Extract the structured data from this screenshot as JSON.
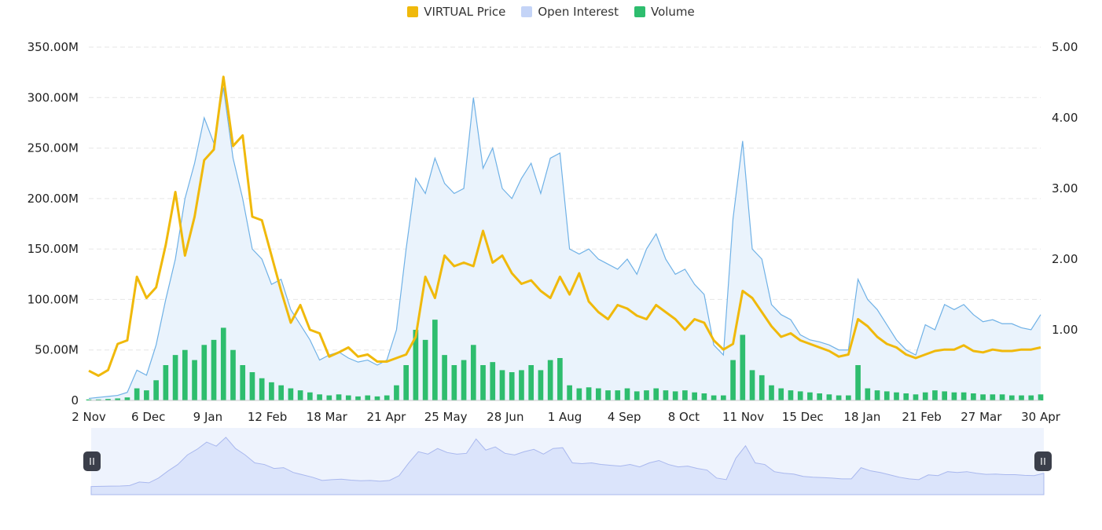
{
  "legend": {
    "price_label": "VIRTUAL Price",
    "oi_label": "Open Interest",
    "volume_label": "Volume"
  },
  "colors": {
    "price": "#f0b90b",
    "open_interest_line": "#6fb1e6",
    "open_interest_fill": "#eaf3fc",
    "open_interest_swatch": "#c4d4f7",
    "volume": "#2ebd6e",
    "grid": "#e6e6e6",
    "navigator_fill": "#dbe4fb",
    "navigator_bg": "#eef3fd",
    "navigator_handle": "#3b3f4a"
  },
  "chart_data": {
    "type": "line",
    "x_ticks": [
      "2 Nov",
      "6 Dec",
      "9 Jan",
      "12 Feb",
      "18 Mar",
      "21 Apr",
      "25 May",
      "28 Jun",
      "1 Aug",
      "4 Sep",
      "8 Oct",
      "11 Nov",
      "15 Dec",
      "18 Jan",
      "21 Feb",
      "27 Mar",
      "30 Apr"
    ],
    "y_left_ticks": [
      "0",
      "50.00M",
      "100.00M",
      "150.00M",
      "200.00M",
      "250.00M",
      "300.00M",
      "350.00M"
    ],
    "y_left_range": [
      0,
      350000000
    ],
    "y_right_ticks": [
      "1.00",
      "2.00",
      "3.00",
      "4.00",
      "5.00"
    ],
    "y_right_range": [
      0,
      5
    ],
    "grid": "horizontal dashed",
    "legend_position": "top-center",
    "series": [
      {
        "name": "VIRTUAL Price",
        "axis": "right",
        "style": "line",
        "values": [
          0.42,
          0.35,
          0.43,
          0.8,
          0.85,
          1.75,
          1.45,
          1.6,
          2.2,
          2.95,
          2.05,
          2.6,
          3.4,
          3.55,
          4.58,
          3.6,
          3.75,
          2.6,
          2.55,
          2.05,
          1.55,
          1.1,
          1.35,
          1.0,
          0.95,
          0.62,
          0.68,
          0.75,
          0.62,
          0.65,
          0.55,
          0.55,
          0.6,
          0.65,
          0.9,
          1.75,
          1.45,
          2.05,
          1.9,
          1.95,
          1.9,
          2.4,
          1.95,
          2.05,
          1.8,
          1.65,
          1.7,
          1.55,
          1.45,
          1.75,
          1.5,
          1.8,
          1.4,
          1.25,
          1.15,
          1.35,
          1.3,
          1.2,
          1.15,
          1.35,
          1.25,
          1.15,
          1.0,
          1.15,
          1.1,
          0.85,
          0.72,
          0.8,
          1.55,
          1.45,
          1.25,
          1.05,
          0.9,
          0.95,
          0.85,
          0.8,
          0.75,
          0.7,
          0.62,
          0.65,
          1.15,
          1.05,
          0.9,
          0.8,
          0.75,
          0.65,
          0.6,
          0.65,
          0.7,
          0.72,
          0.72,
          0.78,
          0.7,
          0.68,
          0.72,
          0.7,
          0.7,
          0.72,
          0.72,
          0.75
        ]
      },
      {
        "name": "Open Interest",
        "axis": "left",
        "style": "area",
        "values": [
          2000000,
          3000000,
          4000000,
          5000000,
          8000000,
          30000000,
          25000000,
          55000000,
          100000000,
          140000000,
          200000000,
          235000000,
          280000000,
          255000000,
          310000000,
          240000000,
          200000000,
          150000000,
          140000000,
          115000000,
          120000000,
          90000000,
          75000000,
          60000000,
          40000000,
          45000000,
          48000000,
          42000000,
          38000000,
          40000000,
          35000000,
          40000000,
          70000000,
          150000000,
          220000000,
          205000000,
          240000000,
          215000000,
          205000000,
          210000000,
          300000000,
          230000000,
          250000000,
          210000000,
          200000000,
          220000000,
          235000000,
          205000000,
          240000000,
          245000000,
          150000000,
          145000000,
          150000000,
          140000000,
          135000000,
          130000000,
          140000000,
          125000000,
          150000000,
          165000000,
          140000000,
          125000000,
          130000000,
          115000000,
          105000000,
          55000000,
          45000000,
          180000000,
          257000000,
          150000000,
          140000000,
          95000000,
          85000000,
          80000000,
          65000000,
          60000000,
          58000000,
          55000000,
          50000000,
          50000000,
          120000000,
          100000000,
          90000000,
          75000000,
          60000000,
          50000000,
          45000000,
          75000000,
          70000000,
          95000000,
          90000000,
          95000000,
          85000000,
          78000000,
          80000000,
          76000000,
          76000000,
          72000000,
          70000000,
          85000000
        ]
      },
      {
        "name": "Volume",
        "axis": "left",
        "style": "bar",
        "values": [
          1000000,
          1000000,
          1500000,
          2000000,
          3000000,
          12000000,
          10000000,
          20000000,
          35000000,
          45000000,
          50000000,
          40000000,
          55000000,
          60000000,
          72000000,
          50000000,
          35000000,
          28000000,
          22000000,
          18000000,
          15000000,
          12000000,
          10000000,
          8000000,
          6000000,
          5000000,
          6000000,
          5000000,
          4000000,
          5000000,
          4000000,
          5000000,
          15000000,
          35000000,
          70000000,
          60000000,
          80000000,
          45000000,
          35000000,
          40000000,
          55000000,
          35000000,
          38000000,
          30000000,
          28000000,
          30000000,
          35000000,
          30000000,
          40000000,
          42000000,
          15000000,
          12000000,
          13000000,
          12000000,
          10000000,
          10000000,
          12000000,
          9000000,
          10000000,
          12000000,
          10000000,
          9000000,
          10000000,
          8000000,
          7000000,
          5000000,
          5000000,
          40000000,
          65000000,
          30000000,
          25000000,
          15000000,
          12000000,
          10000000,
          9000000,
          8000000,
          7000000,
          6000000,
          5000000,
          5000000,
          35000000,
          12000000,
          10000000,
          9000000,
          8000000,
          7000000,
          6000000,
          8000000,
          10000000,
          9000000,
          8000000,
          8000000,
          7000000,
          6000000,
          6000000,
          6000000,
          5000000,
          5000000,
          5000000,
          6000000
        ]
      }
    ]
  }
}
